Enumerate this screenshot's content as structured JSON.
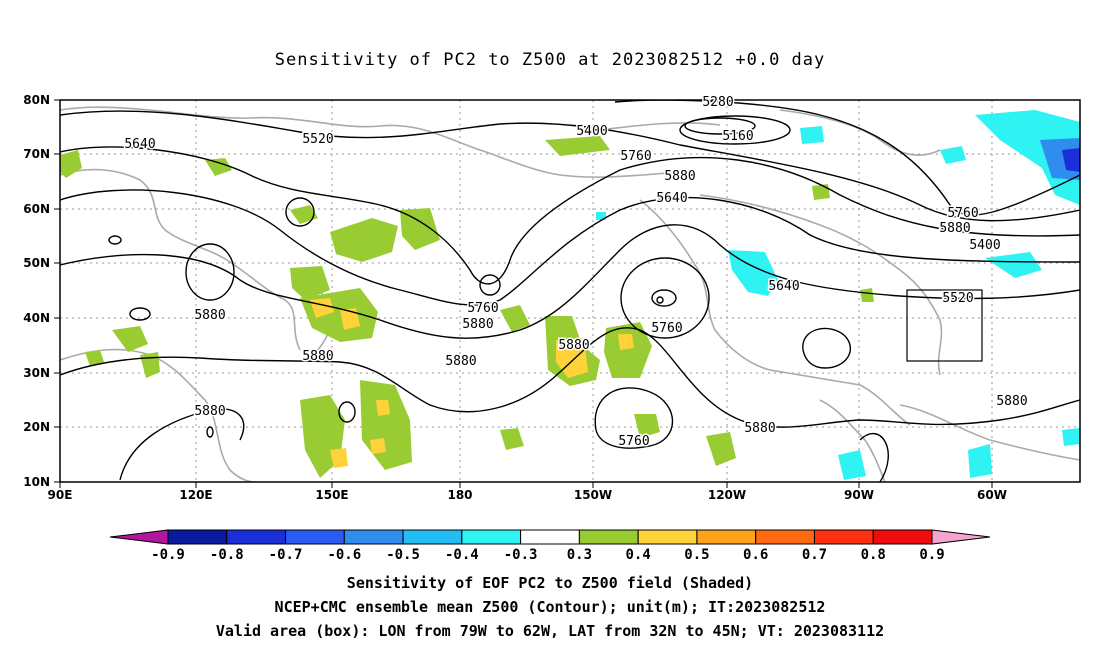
{
  "title": "Sensitivity of PC2 to Z500 at 2023082512 +0.0 day",
  "axes": {
    "lat_labels": [
      "80N",
      "70N",
      "60N",
      "50N",
      "40N",
      "30N",
      "20N",
      "10N"
    ],
    "lon_labels": [
      "90E",
      "120E",
      "150E",
      "180",
      "150W",
      "120W",
      "90W",
      "60W"
    ]
  },
  "contour_labels": [
    "5280",
    "5160",
    "5400",
    "5520",
    "5640",
    "5760",
    "5880",
    "5400",
    "5520",
    "5640",
    "5760",
    "5880",
    "5640",
    "5760",
    "5880",
    "5880",
    "5760",
    "5880",
    "5880",
    "5880",
    "5880",
    "5760",
    "5880"
  ],
  "colorbar": {
    "labels": [
      "-0.9",
      "-0.8",
      "-0.7",
      "-0.6",
      "-0.5",
      "-0.4",
      "-0.3",
      "0.3",
      "0.4",
      "0.5",
      "0.6",
      "0.7",
      "0.8",
      "0.9"
    ],
    "colors": [
      "#0a1a9c",
      "#1a2fd8",
      "#2a5cf2",
      "#2f8df0",
      "#22bdf2",
      "#2ff2f2",
      "#ffffff",
      "#99cc33",
      "#ffd23a",
      "#ffa31a",
      "#ff6a10",
      "#ff3010",
      "#ee0c0c"
    ],
    "left_tip": "#b4159e",
    "right_tip": "#f5a3d0"
  },
  "captions": [
    "Sensitivity of EOF PC2 to Z500 field (Shaded)",
    "NCEP+CMC ensemble mean Z500 (Contour); unit(m); IT:2023082512",
    "Valid area (box): LON from 79W to 62W, LAT from 32N to 45N; VT: 2023083112"
  ]
}
